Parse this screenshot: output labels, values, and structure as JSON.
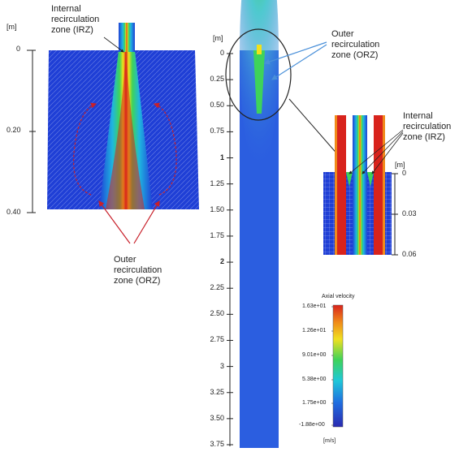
{
  "left_panel": {
    "unit": "[m]",
    "ticks": [
      "0",
      "0.20",
      "0.40"
    ],
    "irz_label": "Internal\nrecirculation\nzone (IRZ)",
    "orz_label": "Outer\nrecirculation\nzone (ORZ)"
  },
  "center_panel": {
    "unit": "[m]",
    "ticks": [
      "0",
      "0.25",
      "0.50",
      "0.75",
      "1",
      "1.25",
      "1.50",
      "1.75",
      "2",
      "2.25",
      "2.50",
      "2.75",
      "3",
      "3.25",
      "3.50",
      "3.75"
    ],
    "orz_label": "Outer\nrecirculation\nzone (ORZ)"
  },
  "right_panel": {
    "unit": "[m]",
    "ticks": [
      "0",
      "0.03",
      "0.06"
    ],
    "irz_label": "Internal\nrecirculation\nzone (IRZ)"
  },
  "colorbar": {
    "title": "Axial velocity",
    "labels": [
      "1.63e+01",
      "1.26e+01",
      "9.01e+00",
      "5.38e+00",
      "1.75e+00",
      "-1.88e+00"
    ],
    "unit": "[m/s]"
  },
  "colors": {
    "low": "#1f3fd6",
    "mid": "#22c25a",
    "high": "#d8231c",
    "arrow_red": "#c8202a",
    "arrow_blue": "#4a90d9"
  }
}
